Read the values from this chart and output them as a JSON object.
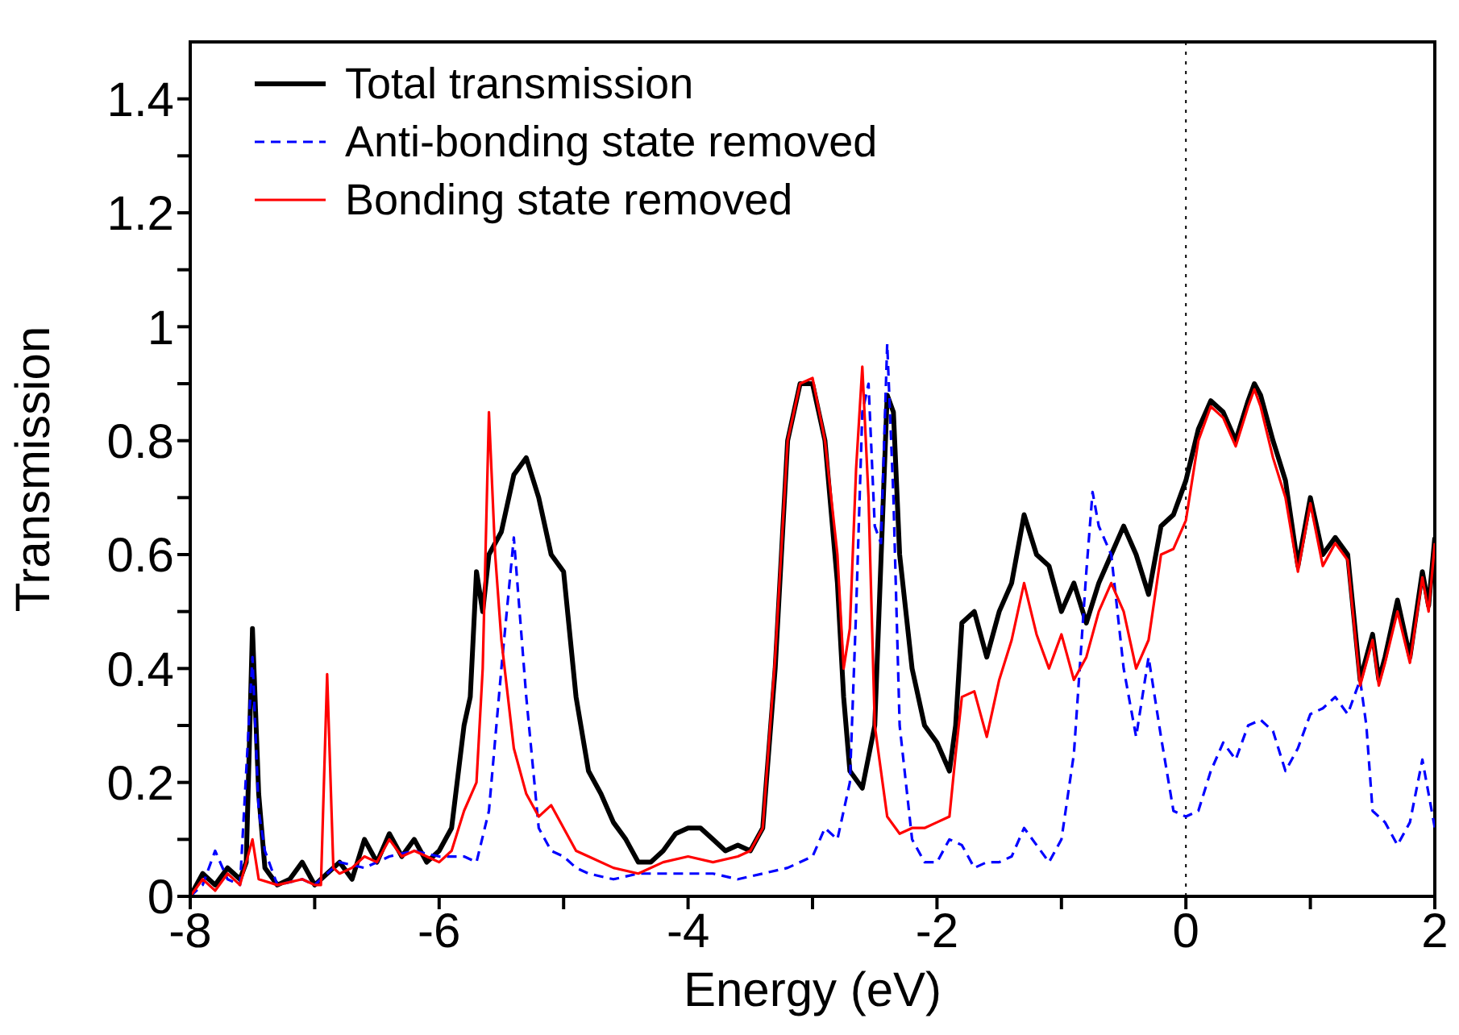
{
  "chart_data": {
    "type": "line",
    "xlabel": "Energy (eV)",
    "ylabel": "Transmission",
    "xlim": [
      -8,
      2
    ],
    "ylim": [
      0,
      1.5
    ],
    "xticks": [
      -8,
      {
        "value": -7,
        "label": null
      },
      -6,
      {
        "value": -5,
        "label": null
      },
      -4,
      {
        "value": -3,
        "label": null
      },
      -2,
      {
        "value": -1,
        "label": null
      },
      0,
      {
        "value": 1,
        "label": null
      },
      2
    ],
    "yticks": [
      0,
      {
        "value": 0.1,
        "label": null
      },
      0.2,
      {
        "value": 0.3,
        "label": null
      },
      0.4,
      {
        "value": 0.5,
        "label": null
      },
      0.6,
      {
        "value": 0.7,
        "label": null
      },
      0.8,
      {
        "value": 0.9,
        "label": null
      },
      1,
      {
        "value": 1.1,
        "label": null
      },
      1.2,
      {
        "value": 1.3,
        "label": null
      },
      1.4
    ],
    "grid": false,
    "legend": "top left",
    "marker": "none",
    "ref_lines": [
      {
        "axis": "x",
        "value": 0,
        "color": "#000000",
        "line_style": "dotted"
      }
    ],
    "series": [
      {
        "name": "Total transmission",
        "color": "#000000",
        "line_style": "solid",
        "x": [
          -8,
          -7.9,
          -7.8,
          -7.7,
          -7.6,
          -7.55,
          -7.5,
          -7.45,
          -7.4,
          -7.3,
          -7.2,
          -7.1,
          -7.0,
          -6.9,
          -6.8,
          -6.7,
          -6.6,
          -6.5,
          -6.4,
          -6.3,
          -6.2,
          -6.1,
          -6.0,
          -5.9,
          -5.8,
          -5.75,
          -5.7,
          -5.65,
          -5.6,
          -5.5,
          -5.4,
          -5.3,
          -5.2,
          -5.1,
          -5.0,
          -4.9,
          -4.8,
          -4.7,
          -4.6,
          -4.5,
          -4.4,
          -4.3,
          -4.2,
          -4.1,
          -4.0,
          -3.9,
          -3.8,
          -3.7,
          -3.6,
          -3.5,
          -3.4,
          -3.3,
          -3.2,
          -3.1,
          -3.0,
          -2.9,
          -2.8,
          -2.75,
          -2.7,
          -2.6,
          -2.5,
          -2.4,
          -2.35,
          -2.3,
          -2.2,
          -2.1,
          -2.0,
          -1.9,
          -1.85,
          -1.8,
          -1.7,
          -1.6,
          -1.5,
          -1.4,
          -1.3,
          -1.2,
          -1.1,
          -1.0,
          -0.9,
          -0.8,
          -0.7,
          -0.6,
          -0.5,
          -0.4,
          -0.3,
          -0.2,
          -0.1,
          0.0,
          0.1,
          0.2,
          0.3,
          0.4,
          0.5,
          0.55,
          0.6,
          0.7,
          0.8,
          0.9,
          1.0,
          1.1,
          1.2,
          1.3,
          1.4,
          1.5,
          1.55,
          1.6,
          1.7,
          1.8,
          1.9,
          1.95,
          2.0
        ],
        "values": [
          0,
          0.04,
          0.02,
          0.05,
          0.03,
          0.06,
          0.47,
          0.18,
          0.05,
          0.02,
          0.03,
          0.06,
          0.02,
          0.04,
          0.06,
          0.03,
          0.1,
          0.06,
          0.11,
          0.07,
          0.1,
          0.06,
          0.08,
          0.12,
          0.3,
          0.35,
          0.57,
          0.5,
          0.6,
          0.64,
          0.74,
          0.77,
          0.7,
          0.6,
          0.57,
          0.35,
          0.22,
          0.18,
          0.13,
          0.1,
          0.06,
          0.06,
          0.08,
          0.11,
          0.12,
          0.12,
          0.1,
          0.08,
          0.09,
          0.08,
          0.12,
          0.4,
          0.8,
          0.9,
          0.9,
          0.8,
          0.55,
          0.35,
          0.22,
          0.19,
          0.3,
          0.88,
          0.85,
          0.6,
          0.4,
          0.3,
          0.27,
          0.22,
          0.3,
          0.48,
          0.5,
          0.42,
          0.5,
          0.55,
          0.67,
          0.6,
          0.58,
          0.5,
          0.55,
          0.48,
          0.55,
          0.6,
          0.65,
          0.6,
          0.53,
          0.65,
          0.67,
          0.73,
          0.82,
          0.87,
          0.85,
          0.8,
          0.87,
          0.9,
          0.88,
          0.8,
          0.73,
          0.58,
          0.7,
          0.6,
          0.63,
          0.6,
          0.38,
          0.46,
          0.38,
          0.42,
          0.52,
          0.42,
          0.57,
          0.51,
          0.63
        ]
      },
      {
        "name": "Anti-bonding state removed",
        "color": "#0000ff",
        "line_style": "dashed",
        "x": [
          -8,
          -7.9,
          -7.8,
          -7.7,
          -7.6,
          -7.5,
          -7.45,
          -7.4,
          -7.3,
          -7.1,
          -7.0,
          -6.8,
          -6.6,
          -6.4,
          -6.2,
          -6.0,
          -5.8,
          -5.7,
          -5.6,
          -5.5,
          -5.4,
          -5.3,
          -5.2,
          -5.1,
          -5.0,
          -4.9,
          -4.8,
          -4.6,
          -4.4,
          -4.2,
          -4.0,
          -3.8,
          -3.6,
          -3.4,
          -3.2,
          -3.0,
          -2.9,
          -2.8,
          -2.7,
          -2.65,
          -2.6,
          -2.55,
          -2.5,
          -2.45,
          -2.4,
          -2.35,
          -2.3,
          -2.2,
          -2.1,
          -2.0,
          -1.9,
          -1.8,
          -1.7,
          -1.6,
          -1.5,
          -1.4,
          -1.3,
          -1.2,
          -1.1,
          -1.0,
          -0.9,
          -0.8,
          -0.75,
          -0.7,
          -0.6,
          -0.5,
          -0.4,
          -0.3,
          -0.2,
          -0.1,
          0.0,
          0.1,
          0.2,
          0.3,
          0.4,
          0.5,
          0.6,
          0.7,
          0.8,
          0.9,
          1.0,
          1.1,
          1.2,
          1.3,
          1.4,
          1.45,
          1.5,
          1.6,
          1.7,
          1.8,
          1.9,
          1.95,
          2.0
        ],
        "values": [
          0,
          0.02,
          0.08,
          0.03,
          0.02,
          0.42,
          0.15,
          0.08,
          0.02,
          0.03,
          0.02,
          0.06,
          0.05,
          0.07,
          0.08,
          0.07,
          0.07,
          0.06,
          0.15,
          0.4,
          0.63,
          0.35,
          0.12,
          0.08,
          0.07,
          0.05,
          0.04,
          0.03,
          0.04,
          0.04,
          0.04,
          0.04,
          0.03,
          0.04,
          0.05,
          0.07,
          0.12,
          0.1,
          0.2,
          0.5,
          0.85,
          0.9,
          0.65,
          0.62,
          0.97,
          0.7,
          0.3,
          0.1,
          0.06,
          0.06,
          0.1,
          0.09,
          0.05,
          0.06,
          0.06,
          0.07,
          0.12,
          0.09,
          0.06,
          0.1,
          0.25,
          0.57,
          0.71,
          0.65,
          0.6,
          0.4,
          0.28,
          0.42,
          0.28,
          0.15,
          0.14,
          0.15,
          0.22,
          0.27,
          0.24,
          0.3,
          0.31,
          0.29,
          0.22,
          0.26,
          0.32,
          0.33,
          0.35,
          0.32,
          0.38,
          0.3,
          0.15,
          0.13,
          0.09,
          0.13,
          0.24,
          0.18,
          0.12
        ]
      },
      {
        "name": "Bonding state removed",
        "color": "#ff0000",
        "line_style": "solid",
        "x": [
          -8,
          -7.9,
          -7.8,
          -7.7,
          -7.6,
          -7.5,
          -7.45,
          -7.3,
          -7.1,
          -7.0,
          -6.95,
          -6.9,
          -6.85,
          -6.8,
          -6.7,
          -6.6,
          -6.5,
          -6.4,
          -6.3,
          -6.2,
          -6.1,
          -6.0,
          -5.9,
          -5.8,
          -5.7,
          -5.65,
          -5.6,
          -5.55,
          -5.5,
          -5.4,
          -5.3,
          -5.2,
          -5.1,
          -5.0,
          -4.9,
          -4.8,
          -4.6,
          -4.4,
          -4.2,
          -4.0,
          -3.8,
          -3.6,
          -3.5,
          -3.4,
          -3.3,
          -3.2,
          -3.1,
          -3.0,
          -2.9,
          -2.8,
          -2.75,
          -2.7,
          -2.65,
          -2.6,
          -2.55,
          -2.5,
          -2.4,
          -2.3,
          -2.2,
          -2.1,
          -2.0,
          -1.9,
          -1.85,
          -1.8,
          -1.7,
          -1.6,
          -1.5,
          -1.4,
          -1.3,
          -1.2,
          -1.1,
          -1.0,
          -0.9,
          -0.8,
          -0.7,
          -0.6,
          -0.5,
          -0.4,
          -0.3,
          -0.2,
          -0.1,
          0.0,
          0.1,
          0.2,
          0.3,
          0.4,
          0.5,
          0.55,
          0.6,
          0.7,
          0.8,
          0.9,
          1.0,
          1.1,
          1.2,
          1.3,
          1.4,
          1.5,
          1.55,
          1.6,
          1.7,
          1.8,
          1.9,
          1.95,
          2.0
        ],
        "values": [
          0,
          0.03,
          0.01,
          0.04,
          0.02,
          0.1,
          0.03,
          0.02,
          0.03,
          0.02,
          0.02,
          0.39,
          0.05,
          0.04,
          0.05,
          0.07,
          0.06,
          0.1,
          0.07,
          0.08,
          0.07,
          0.06,
          0.08,
          0.15,
          0.2,
          0.4,
          0.85,
          0.6,
          0.45,
          0.26,
          0.18,
          0.14,
          0.16,
          0.12,
          0.08,
          0.07,
          0.05,
          0.04,
          0.06,
          0.07,
          0.06,
          0.07,
          0.08,
          0.12,
          0.42,
          0.8,
          0.9,
          0.91,
          0.8,
          0.6,
          0.4,
          0.47,
          0.75,
          0.93,
          0.7,
          0.3,
          0.14,
          0.11,
          0.12,
          0.12,
          0.13,
          0.14,
          0.25,
          0.35,
          0.36,
          0.28,
          0.38,
          0.45,
          0.55,
          0.46,
          0.4,
          0.46,
          0.38,
          0.42,
          0.5,
          0.55,
          0.5,
          0.4,
          0.45,
          0.6,
          0.61,
          0.66,
          0.8,
          0.86,
          0.84,
          0.79,
          0.86,
          0.89,
          0.86,
          0.77,
          0.7,
          0.57,
          0.69,
          0.58,
          0.62,
          0.59,
          0.37,
          0.45,
          0.37,
          0.41,
          0.5,
          0.41,
          0.56,
          0.5,
          0.62
        ]
      }
    ]
  }
}
